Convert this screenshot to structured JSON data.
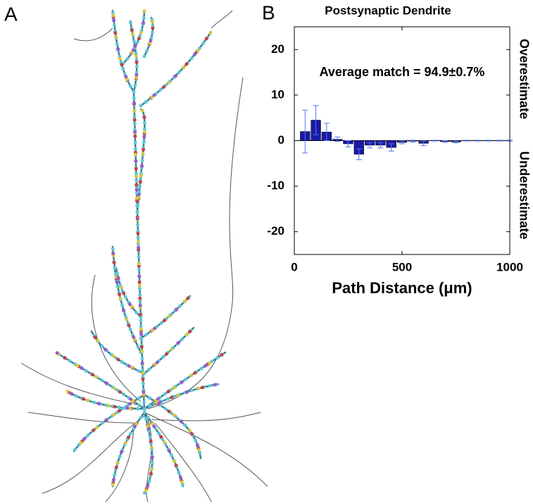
{
  "panels": {
    "a": "A",
    "b": "B"
  },
  "chart_data": {
    "type": "bar",
    "title": "Postsynaptic Dendrite",
    "xlabel": "Path Distance (μm)",
    "annotation": "Average match = 94.9±0.7%",
    "right_labels": [
      "Overestimate",
      "Underestimate"
    ],
    "x": [
      50,
      100,
      150,
      200,
      250,
      300,
      350,
      400,
      450,
      500,
      550,
      600,
      650,
      700,
      750,
      800,
      850,
      900,
      950,
      1000
    ],
    "values": [
      2.0,
      4.5,
      1.9,
      0.3,
      -0.7,
      -3.0,
      -1.0,
      -1.0,
      -1.5,
      -0.4,
      -0.1,
      -0.6,
      0,
      -0.2,
      -0.3,
      0,
      0,
      0,
      0,
      0
    ],
    "errors": [
      4.7,
      3.2,
      1.9,
      0.5,
      0.7,
      1.2,
      0.6,
      0.6,
      0.8,
      0.3,
      0.2,
      0.5,
      0.1,
      0.2,
      0.2,
      0.1,
      0.1,
      0.1,
      0.1,
      0.1
    ],
    "bar_width": 45,
    "color": "#1a1aa6",
    "error_color": "#5577ee",
    "xlim": [
      0,
      1000
    ],
    "xticks": [
      0,
      500,
      1000
    ],
    "ylim": [
      -25,
      25
    ],
    "yticks": [
      -20,
      -10,
      0,
      10,
      20
    ]
  }
}
